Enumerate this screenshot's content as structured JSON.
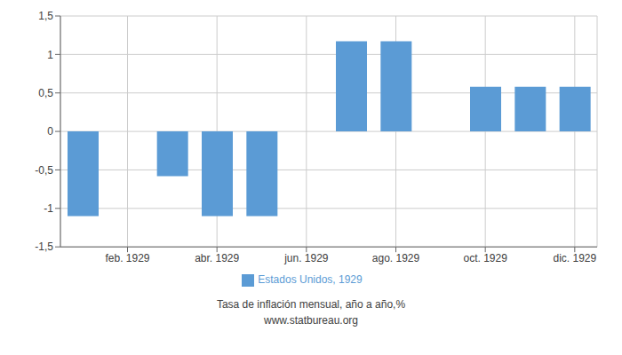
{
  "chart_data": {
    "type": "bar",
    "x": [
      1,
      3,
      4,
      5,
      7,
      8,
      10,
      11,
      12
    ],
    "series": [
      {
        "name": "Estados Unidos, 1929",
        "color": "#5B9BD5",
        "values": [
          -1.1,
          -0.58,
          -1.1,
          -1.1,
          1.17,
          1.17,
          0.58,
          0.58,
          0.58
        ]
      }
    ],
    "xlim": [
      0.5,
      12.5
    ],
    "xticks": [
      {
        "value": 2,
        "label": "feb. 1929"
      },
      {
        "value": 4,
        "label": "abr. 1929"
      },
      {
        "value": 6,
        "label": "jun. 1929"
      },
      {
        "value": 8,
        "label": "ago. 1929"
      },
      {
        "value": 10,
        "label": "oct. 1929"
      },
      {
        "value": 12,
        "label": "dic. 1929"
      }
    ],
    "ylim": [
      -1.5,
      1.5
    ],
    "yticks": [
      {
        "value": -1.5,
        "label": "-1,5"
      },
      -1,
      {
        "value": -0.5,
        "label": "-0,5"
      },
      0,
      {
        "value": 0.5,
        "label": "0,5"
      },
      1,
      {
        "value": 1.5,
        "label": "1,5"
      }
    ],
    "grid": true,
    "legend": "bottom",
    "annotations": [
      "Tasa de inflación mensual, año a año,%",
      "www.statbureau.org"
    ]
  }
}
